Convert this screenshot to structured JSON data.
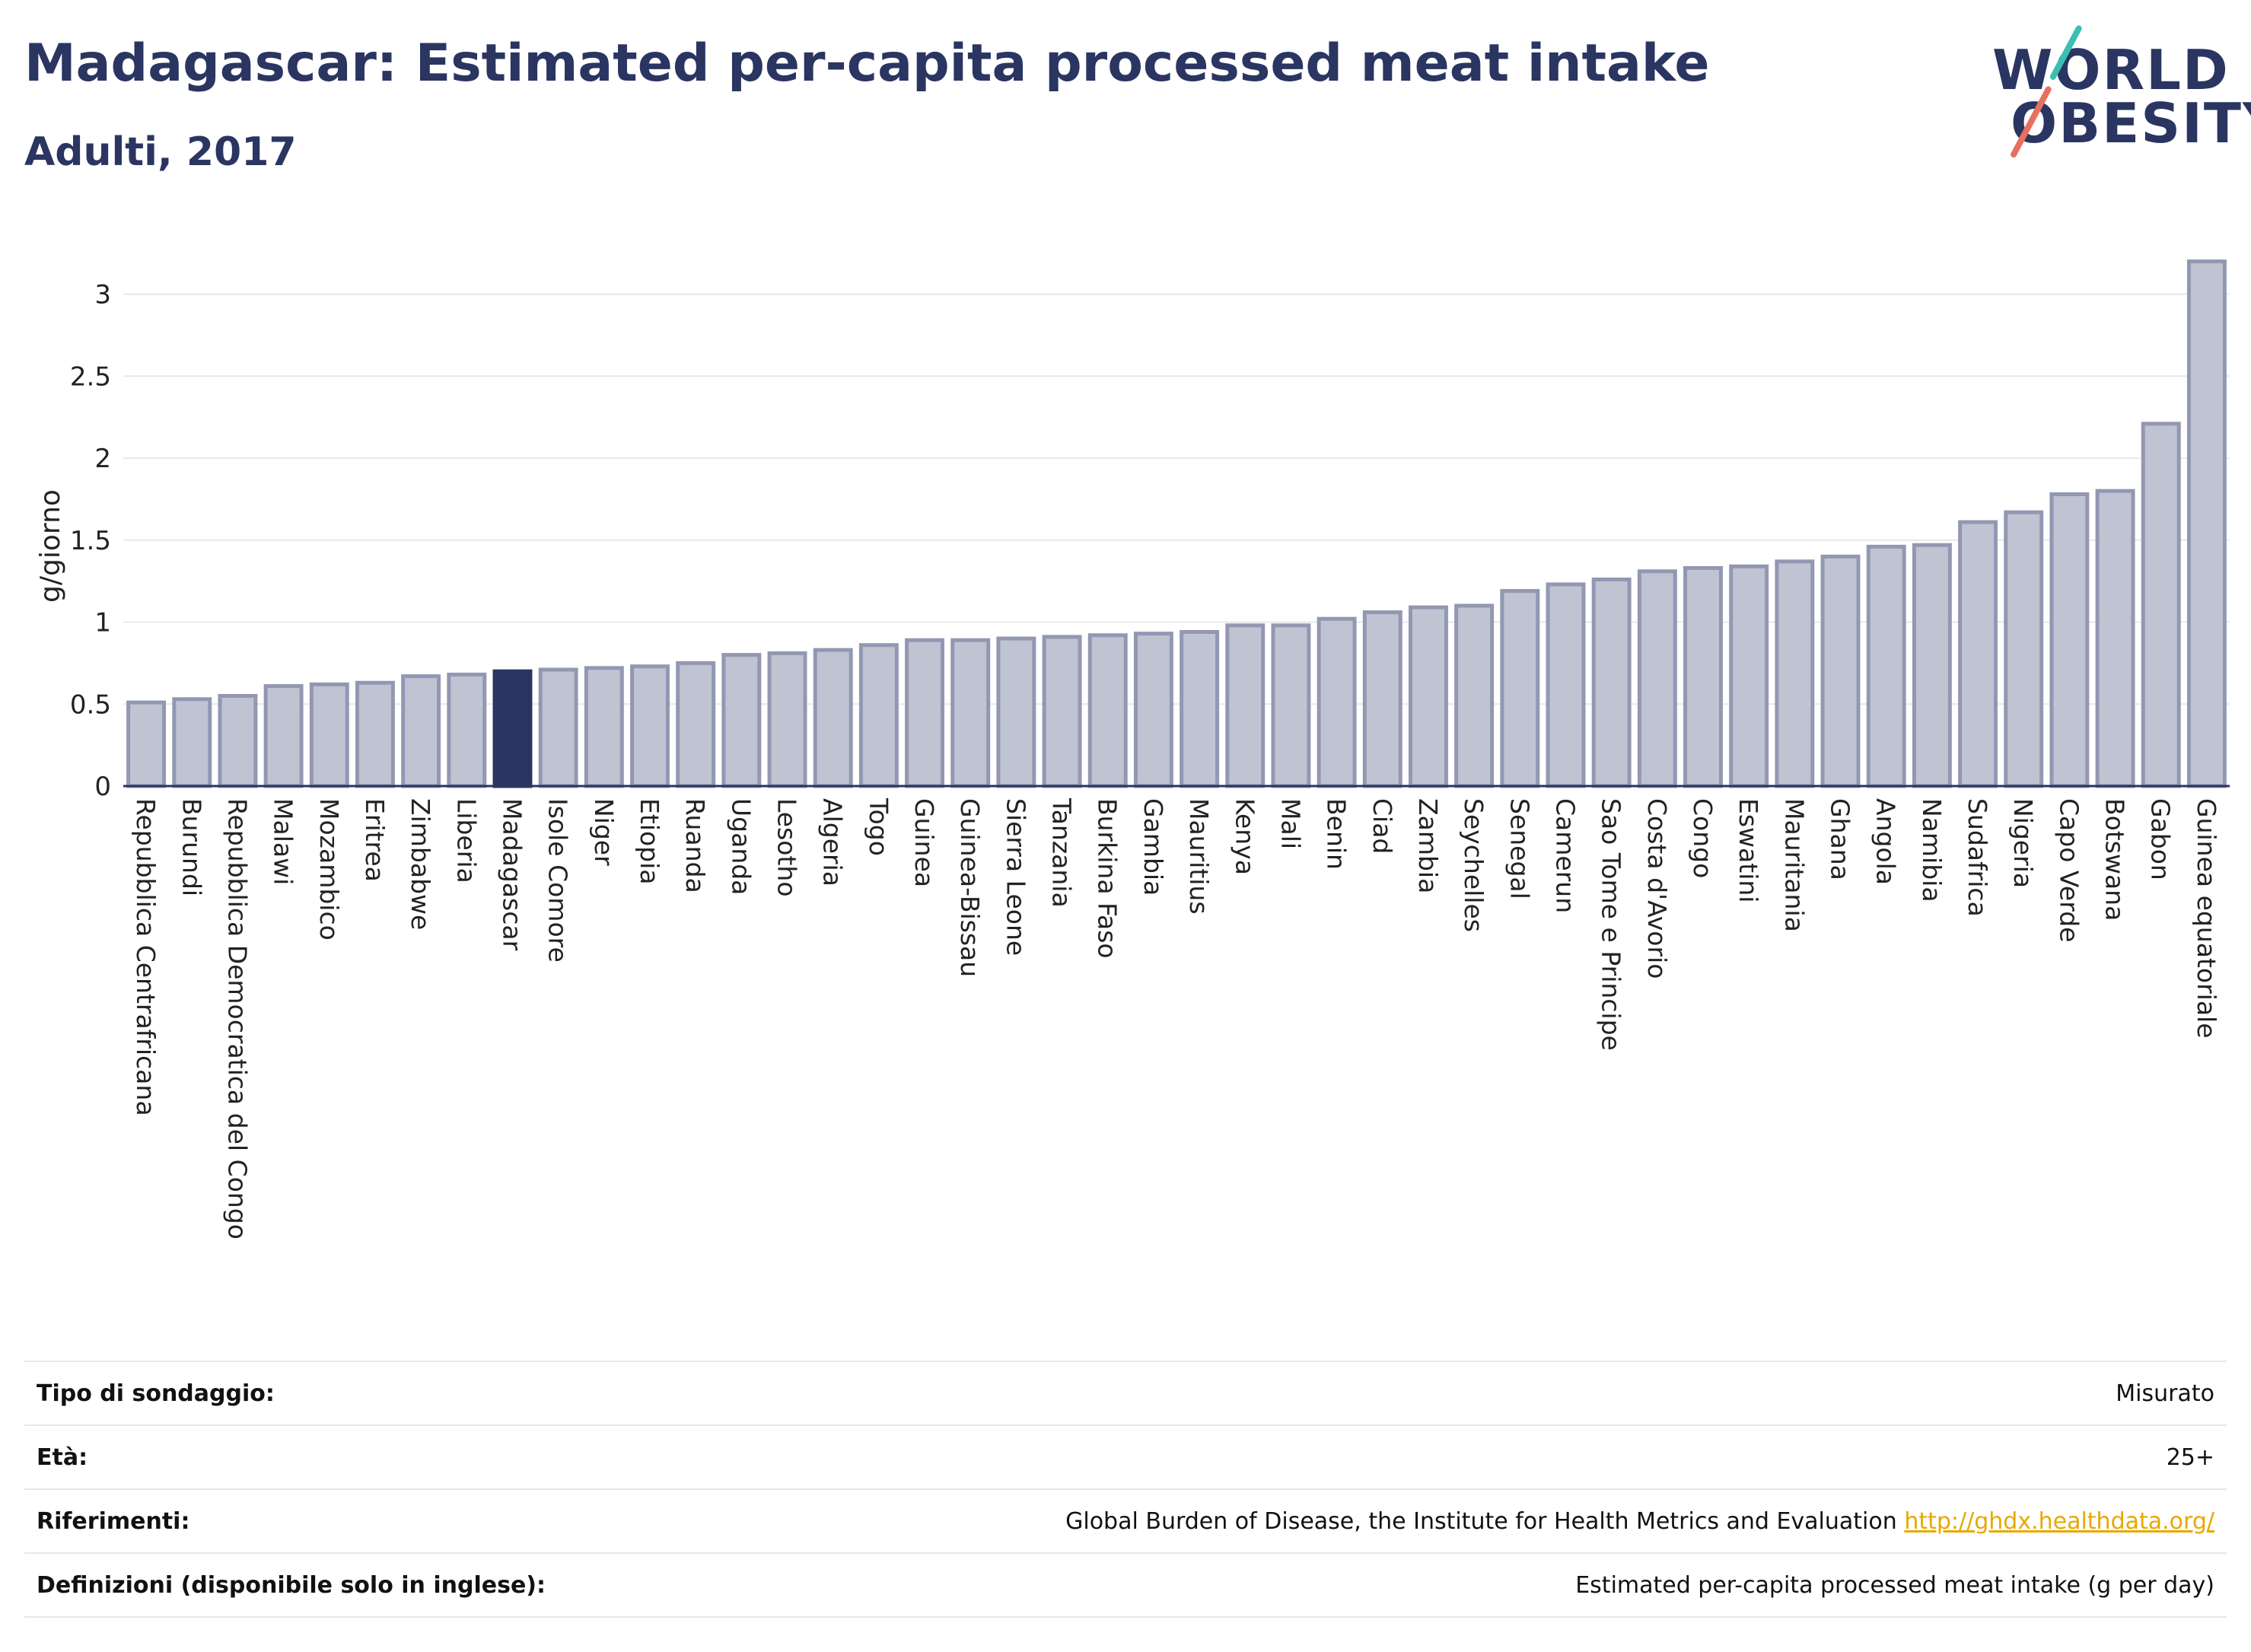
{
  "header": {
    "title": "Madagascar: Estimated per-capita processed meat intake",
    "subtitle": "Adulti, 2017"
  },
  "logo": {
    "line1": "WORLD",
    "line2": "OBESITY",
    "accent_teal": "#3bbfb4",
    "accent_coral": "#e8705f"
  },
  "colors": {
    "bar": "#bfc3d2",
    "bar_stroke": "#9298b2",
    "highlight": "#2a3561",
    "grid": "#e6e8ef"
  },
  "chart_data": {
    "type": "bar",
    "title": "",
    "ylabel": "g/giorno",
    "xlabel": "",
    "ylim": [
      0,
      3.3
    ],
    "yticks": [
      0,
      0.5,
      1,
      1.5,
      2,
      2.5,
      3
    ],
    "ytick_labels": [
      "0",
      "0.5",
      "1",
      "1.5",
      "2",
      "2.5",
      "3"
    ],
    "highlight": "Madagascar",
    "grid": true,
    "categories": [
      "Repubblica Centrafricana",
      "Burundi",
      "Repubblica Democratica del Congo",
      "Malawi",
      "Mozambico",
      "Eritrea",
      "Zimbabwe",
      "Liberia",
      "Madagascar",
      "Isole Comore",
      "Niger",
      "Etiopia",
      "Ruanda",
      "Uganda",
      "Lesotho",
      "Algeria",
      "Togo",
      "Guinea",
      "Guinea-Bissau",
      "Sierra Leone",
      "Tanzania",
      "Burkina Faso",
      "Gambia",
      "Mauritius",
      "Kenya",
      "Mali",
      "Benin",
      "Ciad",
      "Zambia",
      "Seychelles",
      "Senegal",
      "Camerun",
      "Sao Tome e Principe",
      "Costa d'Avorio",
      "Congo",
      "Eswatini",
      "Mauritania",
      "Ghana",
      "Angola",
      "Namibia",
      "Sudafrica",
      "Nigeria",
      "Capo Verde",
      "Botswana",
      "Gabon",
      "Guinea equatoriale"
    ],
    "values": [
      0.51,
      0.53,
      0.55,
      0.61,
      0.62,
      0.63,
      0.67,
      0.68,
      0.7,
      0.71,
      0.72,
      0.73,
      0.75,
      0.8,
      0.81,
      0.83,
      0.86,
      0.89,
      0.89,
      0.9,
      0.91,
      0.92,
      0.93,
      0.94,
      0.98,
      0.98,
      1.02,
      1.06,
      1.09,
      1.1,
      1.19,
      1.23,
      1.26,
      1.31,
      1.33,
      1.34,
      1.37,
      1.4,
      1.46,
      1.47,
      1.61,
      1.67,
      1.78,
      1.8,
      2.21,
      3.2
    ]
  },
  "info": {
    "rows": [
      {
        "label": "Tipo di sondaggio:",
        "value": "Misurato"
      },
      {
        "label": "Età:",
        "value": "25+"
      },
      {
        "label": "Riferimenti:",
        "value": "Global Burden of Disease, the Institute for Health Metrics and Evaluation",
        "link": "http://ghdx.healthdata.org/"
      },
      {
        "label": "Definizioni (disponibile solo in inglese):",
        "value": "Estimated per-capita processed meat intake (g per day)"
      }
    ]
  }
}
